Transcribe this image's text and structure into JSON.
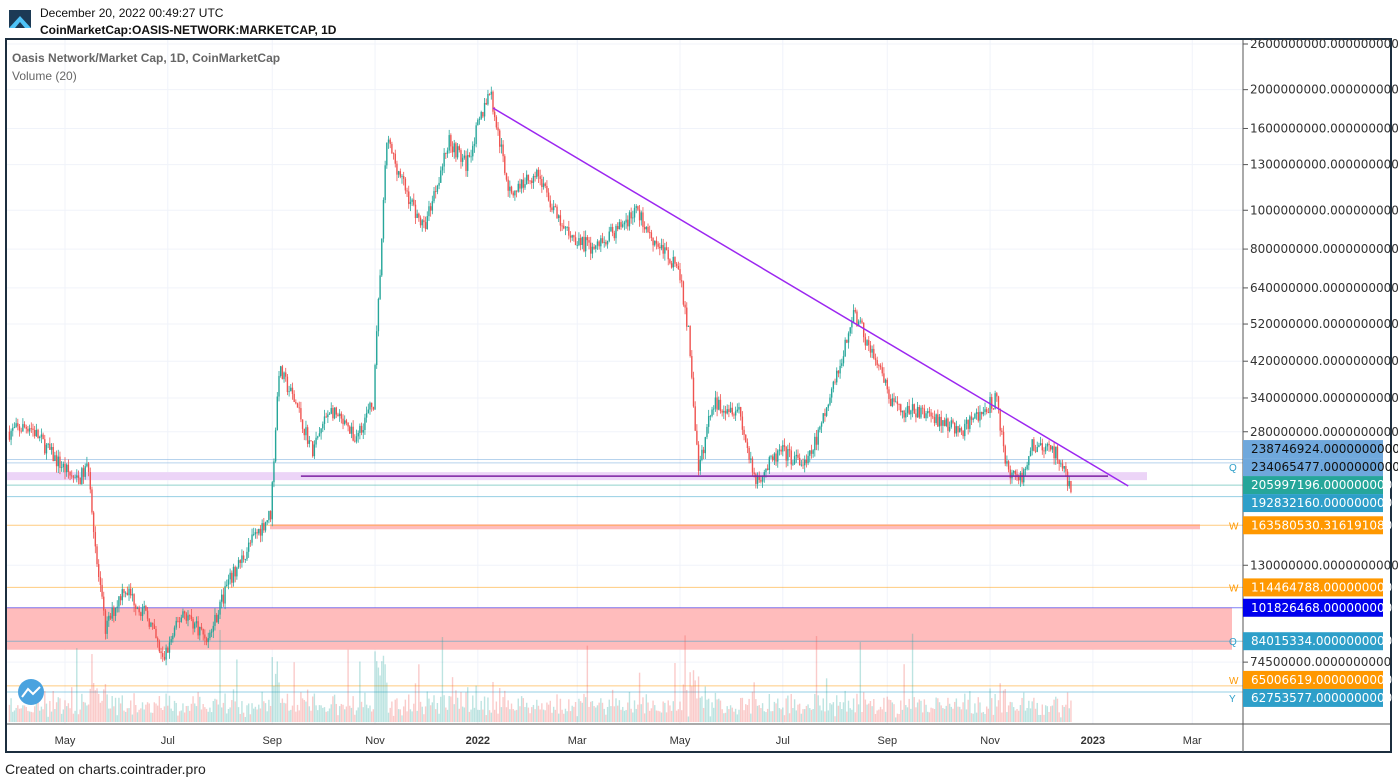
{
  "header": {
    "timestamp": "December 20, 2022 00:49:27 UTC",
    "symbol": "CoinMarketCap:OASIS-NETWORK:MARKETCAP, 1D"
  },
  "legend": {
    "title": "Oasis Network/Market Cap, 1D, CoinMarketCap",
    "indicator": "Volume (20)"
  },
  "footer": "Created on charts.cointrader.pro",
  "colors": {
    "up": "#26a69a",
    "down": "#ef5350",
    "trend": "#9c27f0",
    "support": "#7b1fa2"
  },
  "chart_data": {
    "type": "candlestick",
    "title": "Oasis Network/Market Cap, 1D, CoinMarketCap",
    "yscale": "log",
    "ylim": [
      62000000,
      2700000000
    ],
    "y_ticks": [
      {
        "v": 2600000000,
        "l": "2600000000.0000000000"
      },
      {
        "v": 2000000000,
        "l": "2000000000.0000000000"
      },
      {
        "v": 1600000000,
        "l": "1600000000.0000000000"
      },
      {
        "v": 1300000000,
        "l": "1300000000.0000000000"
      },
      {
        "v": 1000000000,
        "l": "1000000000.0000000000"
      },
      {
        "v": 800000000,
        "l": "800000000.0000000000"
      },
      {
        "v": 640000000,
        "l": "640000000.0000000000"
      },
      {
        "v": 520000000,
        "l": "520000000.0000000000"
      },
      {
        "v": 420000000,
        "l": "420000000.0000000000"
      },
      {
        "v": 340000000,
        "l": "340000000.0000000000"
      },
      {
        "v": 280000000,
        "l": "280000000.0000000000"
      },
      {
        "v": 130000000,
        "l": "130000000.0000000000"
      },
      {
        "v": 74500000,
        "l": "74500000.0000000000"
      }
    ],
    "x_ticks": [
      {
        "d": "2021-05-01",
        "l": "May"
      },
      {
        "d": "2021-07-01",
        "l": "Jul"
      },
      {
        "d": "2021-09-01",
        "l": "Sep"
      },
      {
        "d": "2021-11-01",
        "l": "Nov"
      },
      {
        "d": "2022-01-01",
        "l": "2022"
      },
      {
        "d": "2022-03-01",
        "l": "Mar"
      },
      {
        "d": "2022-05-01",
        "l": "May"
      },
      {
        "d": "2022-07-01",
        "l": "Jul"
      },
      {
        "d": "2022-09-01",
        "l": "Sep"
      },
      {
        "d": "2022-11-01",
        "l": "Nov"
      },
      {
        "d": "2023-01-01",
        "l": "2023"
      },
      {
        "d": "2023-03-01",
        "l": "Mar"
      }
    ],
    "close_path": [
      [
        "2021-03-29",
        280
      ],
      [
        "2021-04-10",
        290
      ],
      [
        "2021-04-25",
        240
      ],
      [
        "2021-05-08",
        210
      ],
      [
        "2021-05-15",
        230
      ],
      [
        "2021-05-20",
        130
      ],
      [
        "2021-05-25",
        90
      ],
      [
        "2021-06-05",
        115
      ],
      [
        "2021-06-20",
        95
      ],
      [
        "2021-06-28",
        75
      ],
      [
        "2021-07-10",
        100
      ],
      [
        "2021-07-25",
        85
      ],
      [
        "2021-08-05",
        115
      ],
      [
        "2021-08-20",
        150
      ],
      [
        "2021-08-31",
        175
      ],
      [
        "2021-09-05",
        400
      ],
      [
        "2021-09-15",
        330
      ],
      [
        "2021-09-25",
        250
      ],
      [
        "2021-10-05",
        320
      ],
      [
        "2021-10-20",
        270
      ],
      [
        "2021-10-31",
        330
      ],
      [
        "2021-11-08",
        1500
      ],
      [
        "2021-11-20",
        1100
      ],
      [
        "2021-11-30",
        900
      ],
      [
        "2021-12-15",
        1500
      ],
      [
        "2021-12-25",
        1300
      ],
      [
        "2022-01-08",
        2000
      ],
      [
        "2022-01-20",
        1100
      ],
      [
        "2022-02-05",
        1250
      ],
      [
        "2022-02-20",
        900
      ],
      [
        "2022-03-10",
        800
      ],
      [
        "2022-03-25",
        900
      ],
      [
        "2022-04-05",
        1000
      ],
      [
        "2022-04-15",
        850
      ],
      [
        "2022-04-30",
        720
      ],
      [
        "2022-05-06",
        500
      ],
      [
        "2022-05-12",
        220
      ],
      [
        "2022-05-20",
        330
      ],
      [
        "2022-06-05",
        320
      ],
      [
        "2022-06-14",
        210
      ],
      [
        "2022-06-30",
        250
      ],
      [
        "2022-07-15",
        230
      ],
      [
        "2022-07-25",
        300
      ],
      [
        "2022-08-05",
        420
      ],
      [
        "2022-08-12",
        560
      ],
      [
        "2022-08-25",
        420
      ],
      [
        "2022-09-05",
        320
      ],
      [
        "2022-09-25",
        310
      ],
      [
        "2022-10-15",
        280
      ],
      [
        "2022-11-05",
        340
      ],
      [
        "2022-11-10",
        230
      ],
      [
        "2022-11-20",
        210
      ],
      [
        "2022-11-25",
        260
      ],
      [
        "2022-12-10",
        250
      ],
      [
        "2022-12-19",
        200
      ]
    ],
    "close_path_unit": "millions",
    "trendline": [
      [
        "2022-01-10",
        1800000000
      ],
      [
        "2023-01-22",
        205000000
      ]
    ],
    "support_line": {
      "from": "2021-09-18",
      "to": "2023-01-10",
      "v": 217000000
    },
    "price_labels": [
      {
        "l": "238746924.0000000000",
        "v": 238746924,
        "bg": "#6fa8dc",
        "fg": "#111"
      },
      {
        "l": "234065477.0000000000",
        "v": 234065477,
        "bg": "#6fa8dc",
        "fg": "#111"
      },
      {
        "l": "205997196.0000000000",
        "v": 205997196,
        "bg": "#26a69a",
        "fg": "#fff"
      },
      {
        "l": "192832160.0000000000",
        "v": 192832160,
        "bg": "#2e9fc9",
        "fg": "#fff"
      },
      {
        "l": "163580530.3161910800",
        "v": 163580530,
        "bg": "#ff9800",
        "fg": "#fff"
      },
      {
        "l": "114464788.0000000000",
        "v": 114464788,
        "bg": "#ff9800",
        "fg": "#fff"
      },
      {
        "l": "101826468.0000000000",
        "v": 101826468,
        "bg": "#0000ee",
        "fg": "#fff"
      },
      {
        "l": "84015334.0000000000",
        "v": 84015334,
        "bg": "#2e9fc9",
        "fg": "#fff"
      },
      {
        "l": "65006619.0000000000",
        "v": 65006619,
        "bg": "#ff9800",
        "fg": "#fff"
      },
      {
        "l": "62753577.0000000000",
        "v": 62753577,
        "bg": "#2e9fc9",
        "fg": "#fff"
      }
    ],
    "markers": [
      {
        "l": "Q",
        "v": 234065477
      },
      {
        "l": "W",
        "v": 163580530
      },
      {
        "l": "W",
        "v": 114464788
      },
      {
        "l": "Q",
        "v": 84015334
      },
      {
        "l": "W",
        "v": 65006619
      },
      {
        "l": "Y",
        "v": 62753577
      }
    ]
  }
}
